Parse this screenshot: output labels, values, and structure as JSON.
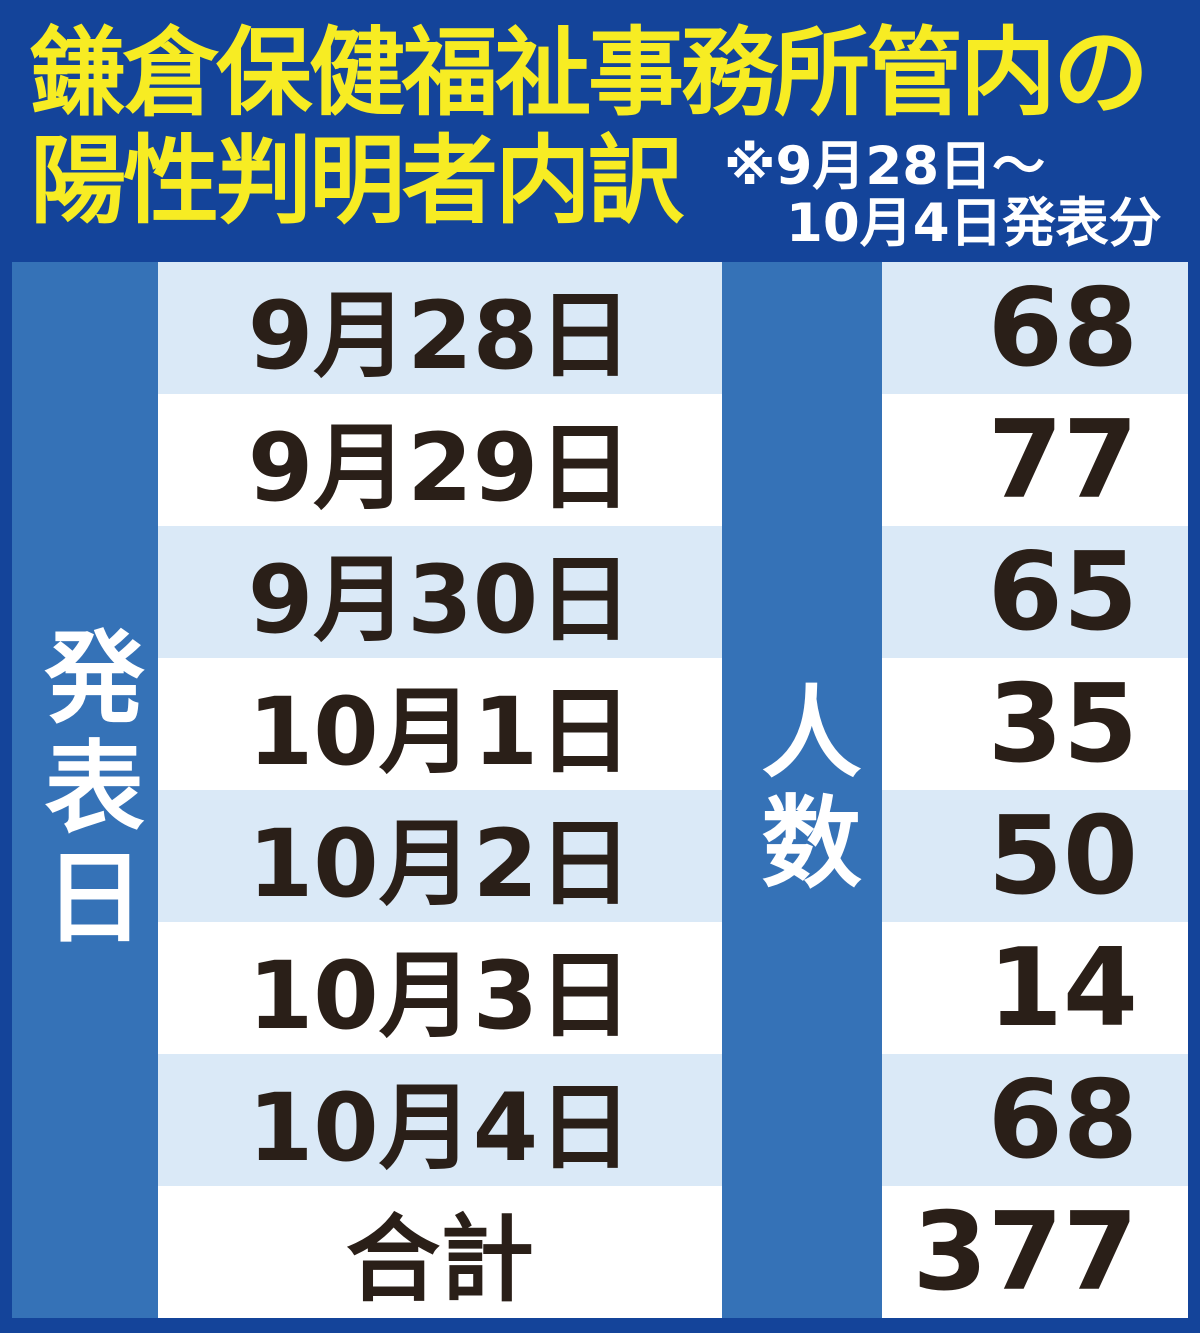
{
  "title": {
    "line1": "鎌倉保健福祉事務所管内の",
    "line2": "陽性判明者内訳"
  },
  "note": {
    "line1": "※9月28日～",
    "line2": "10月4日発表分"
  },
  "table": {
    "row_header_label": "発表日",
    "count_header_label": "人数",
    "rows": [
      {
        "date": "9月28日",
        "count": "68"
      },
      {
        "date": "9月29日",
        "count": "77"
      },
      {
        "date": "9月30日",
        "count": "65"
      },
      {
        "date": "10月1日",
        "count": "35"
      },
      {
        "date": "10月2日",
        "count": "50"
      },
      {
        "date": "10月3日",
        "count": "14"
      },
      {
        "date": "10月4日",
        "count": "68"
      },
      {
        "date": "合計",
        "count": "377"
      }
    ]
  },
  "colors": {
    "background_navy": "#14449A",
    "column_blue": "#3572B7",
    "stripe_light_blue": "#DAE9F7",
    "stripe_white": "#FFFFFF",
    "text_dark": "#2A1F18",
    "title_yellow": "#F7EC23",
    "label_white": "#FFFFFF"
  },
  "chart_data": {
    "type": "table",
    "title": "鎌倉保健福祉事務所管内の陽性判明者内訳",
    "subtitle": "※9月28日～10月4日発表分",
    "columns": [
      "発表日",
      "人数"
    ],
    "rows": [
      [
        "9月28日",
        68
      ],
      [
        "9月29日",
        77
      ],
      [
        "9月30日",
        65
      ],
      [
        "10月1日",
        35
      ],
      [
        "10月2日",
        50
      ],
      [
        "10月3日",
        14
      ],
      [
        "10月4日",
        68
      ],
      [
        "合計",
        377
      ]
    ]
  }
}
